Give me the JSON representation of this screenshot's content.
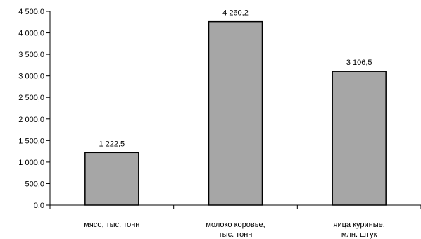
{
  "chart_data": {
    "type": "bar",
    "categories": [
      [
        "мясо, тыс. тонн"
      ],
      [
        "молоко коровье,",
        "тыс. тонн"
      ],
      [
        "яица куриные,",
        "млн. штук"
      ]
    ],
    "values": [
      1222.5,
      4260.2,
      3106.5
    ],
    "value_labels": [
      "1 222,5",
      "4 260,2",
      "3 106,5"
    ],
    "y_ticks": [
      0,
      500,
      1000,
      1500,
      2000,
      2500,
      3000,
      3500,
      4000,
      4500
    ],
    "y_tick_labels": [
      "0,0",
      "500,0",
      "1 000,0",
      "1 500,0",
      "2 000,0",
      "2 500,0",
      "3 000,0",
      "3 500,0",
      "4 000,0",
      "4 500,0"
    ],
    "ylim": [
      0,
      4500
    ],
    "title": "",
    "xlabel": "",
    "ylabel": "",
    "grid": false,
    "legend": "none",
    "bar_color": "#a6a6a6",
    "bar_edge_color": "#000000"
  }
}
